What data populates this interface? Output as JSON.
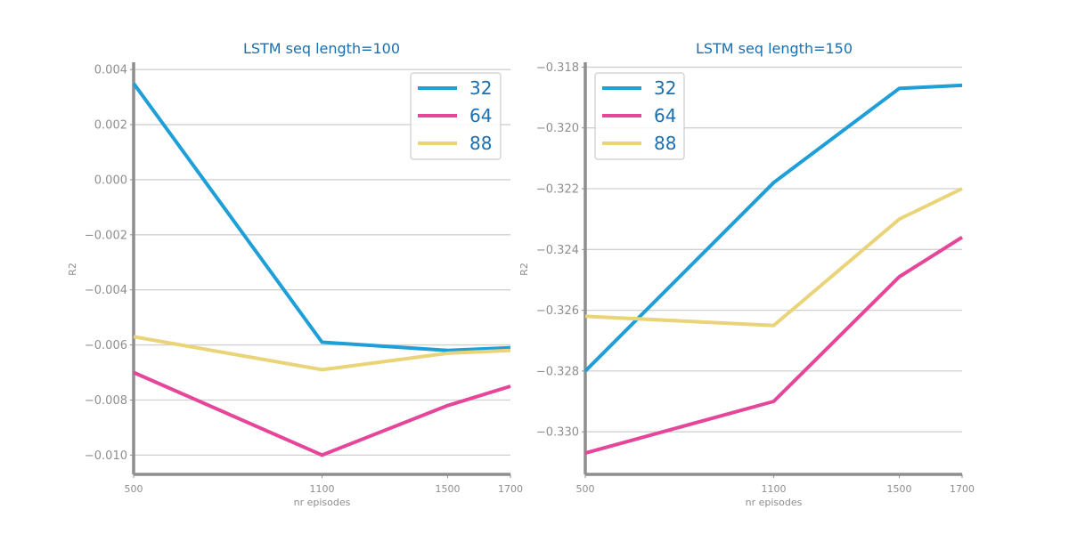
{
  "chart_data": [
    {
      "type": "line",
      "title": "LSTM seq length=100",
      "xlabel": "nr episodes",
      "ylabel": "R2",
      "x": [
        500,
        1100,
        1500,
        1700
      ],
      "x_tick_labels": [
        "500",
        "1100",
        "1500",
        "1700"
      ],
      "xlim": [
        500,
        1700
      ],
      "ylim": [
        -0.0107,
        0.0042
      ],
      "y_ticks": [
        0.004,
        0.002,
        0.0,
        -0.002,
        -0.004,
        -0.006,
        -0.008,
        -0.01
      ],
      "y_tick_labels": [
        "0.004",
        "0.002",
        "0.000",
        "−0.002",
        "−0.004",
        "−0.006",
        "−0.008",
        "−0.010"
      ],
      "grid": "horizontal",
      "legend_position": "top-right",
      "series": [
        {
          "name": "32",
          "color": "#1f9fd8",
          "values": [
            0.0035,
            -0.0059,
            -0.0062,
            -0.0061
          ]
        },
        {
          "name": "64",
          "color": "#e5469a",
          "values": [
            -0.007,
            -0.01,
            -0.0082,
            -0.0075
          ]
        },
        {
          "name": "88",
          "color": "#ead47a",
          "values": [
            -0.0057,
            -0.0069,
            -0.0063,
            -0.0062
          ]
        }
      ]
    },
    {
      "type": "line",
      "title": "LSTM seq length=150",
      "xlabel": "nr episodes",
      "ylabel": "R2",
      "x": [
        500,
        1100,
        1500,
        1700
      ],
      "x_tick_labels": [
        "500",
        "1100",
        "1500",
        "1700"
      ],
      "xlim": [
        500,
        1700
      ],
      "ylim": [
        -0.3314,
        -0.3179
      ],
      "y_ticks": [
        -0.318,
        -0.32,
        -0.322,
        -0.324,
        -0.326,
        -0.328,
        -0.33
      ],
      "y_tick_labels": [
        "−0.318",
        "−0.320",
        "−0.322",
        "−0.324",
        "−0.326",
        "−0.328",
        "−0.330"
      ],
      "grid": "horizontal",
      "legend_position": "top-left",
      "series": [
        {
          "name": "32",
          "color": "#1f9fd8",
          "values": [
            -0.328,
            -0.3218,
            -0.3187,
            -0.3186
          ]
        },
        {
          "name": "64",
          "color": "#e5469a",
          "values": [
            -0.3307,
            -0.329,
            -0.3249,
            -0.3236
          ]
        },
        {
          "name": "88",
          "color": "#ead47a",
          "values": [
            -0.3262,
            -0.3265,
            -0.323,
            -0.322
          ]
        }
      ]
    }
  ],
  "style": {
    "title_color": "#1a6fb0",
    "axis_color": "#8e8e8e",
    "grid_color": "#d0d0d0",
    "tick_text_color": "#8e8e8e",
    "legend_text_color": "#1a6fb0",
    "legend_border_color": "#cccccc"
  }
}
